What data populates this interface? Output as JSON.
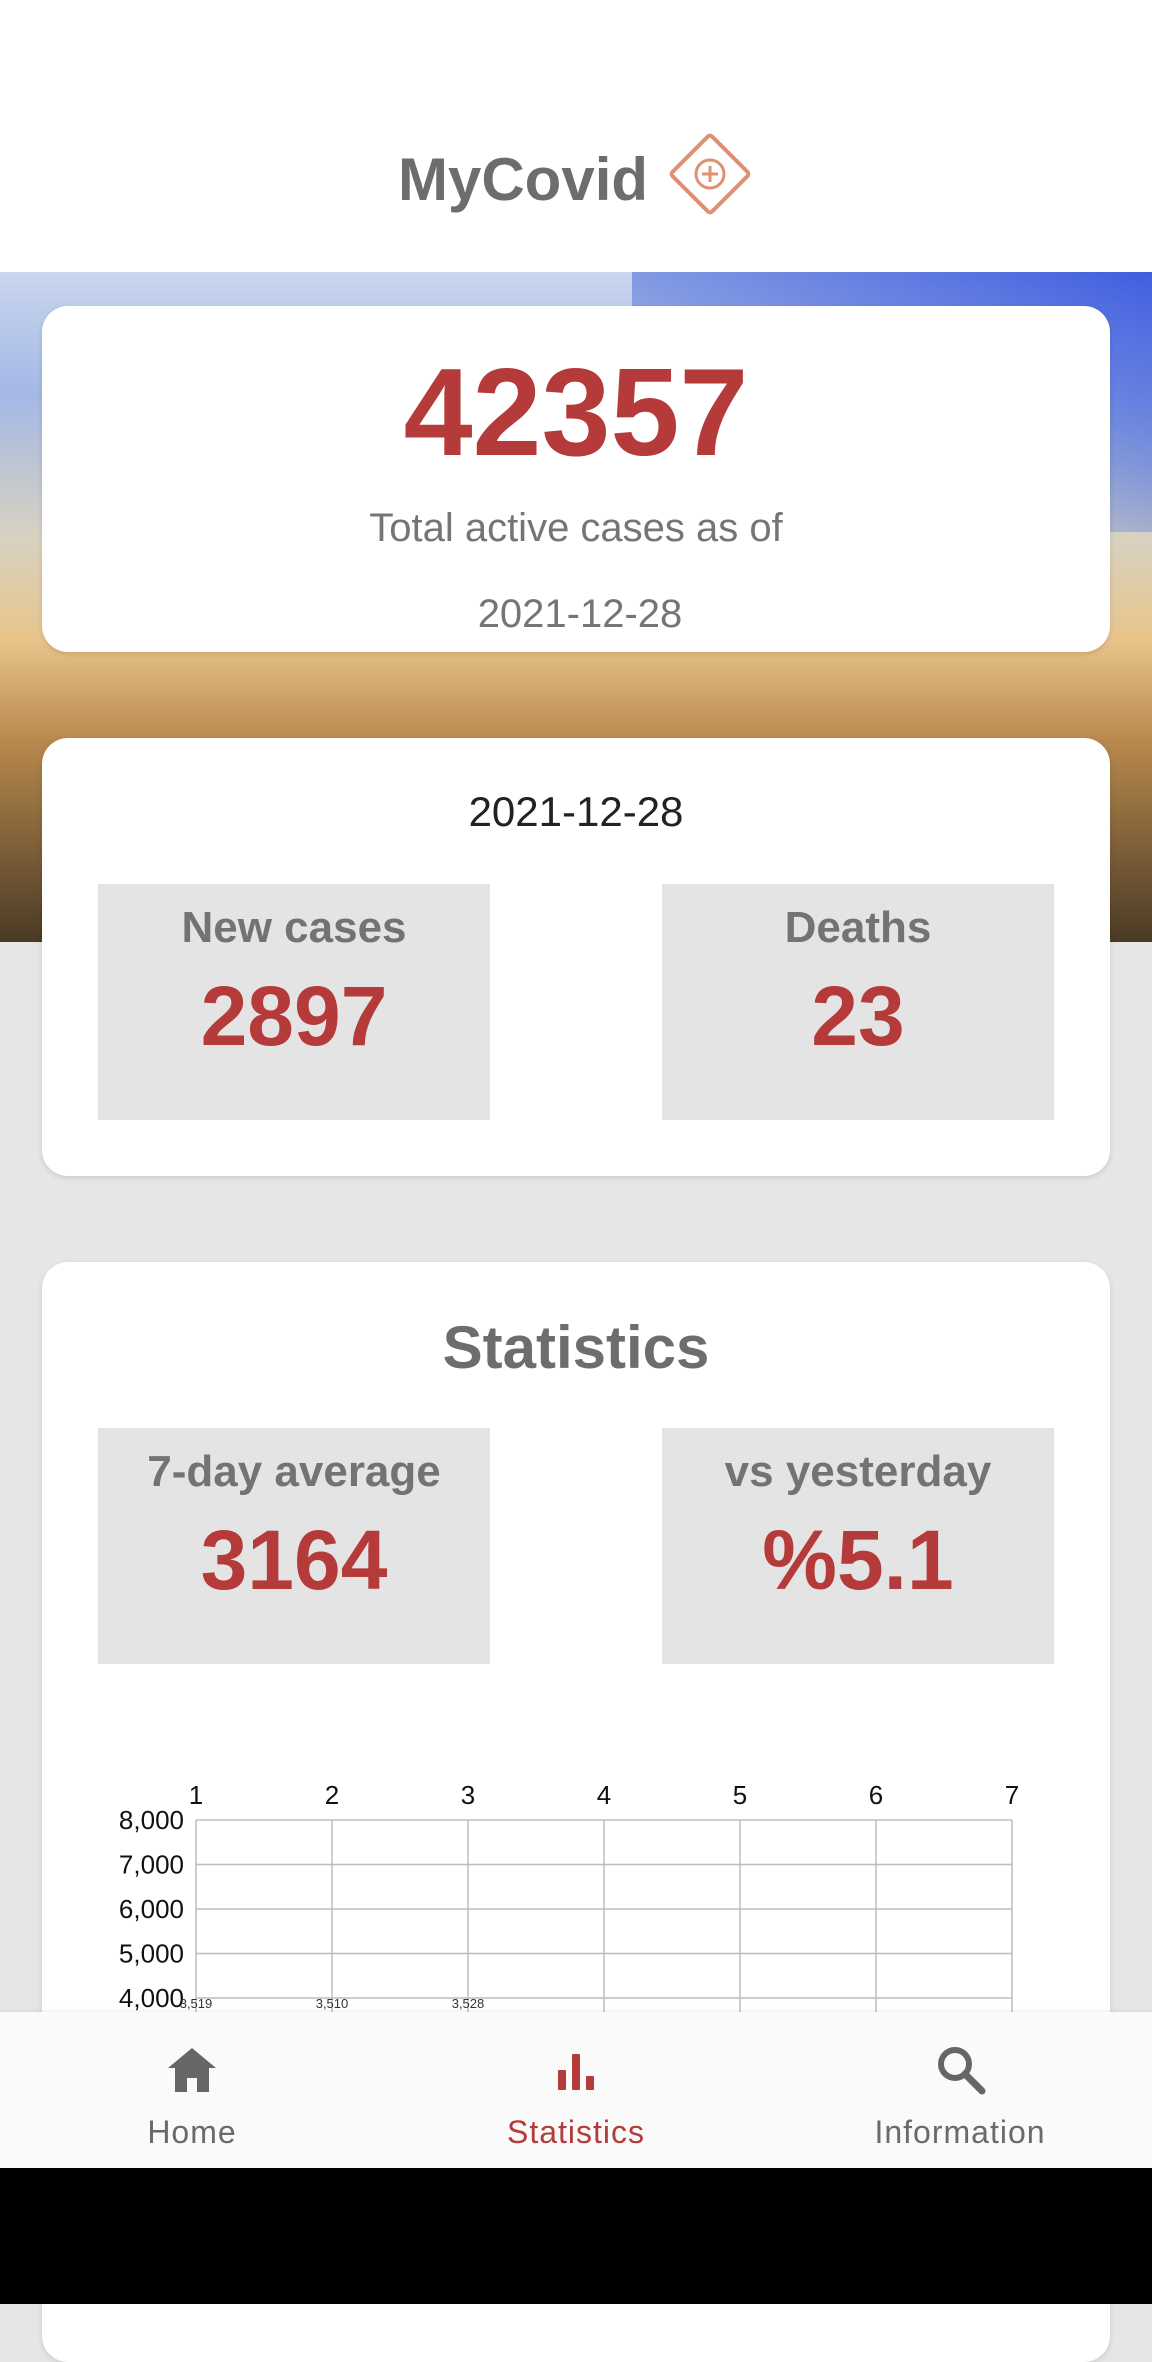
{
  "header": {
    "title": "MyCovid",
    "logo_icon": "plus-diamond-icon"
  },
  "total": {
    "value": "42357",
    "label": "Total active cases as of",
    "date": "2021-12-28"
  },
  "daily": {
    "date": "2021-12-28",
    "new_cases": {
      "label": "New cases",
      "value": "2897"
    },
    "deaths": {
      "label": "Deaths",
      "value": "23"
    }
  },
  "statistics": {
    "title": "Statistics",
    "avg": {
      "label": "7-day average",
      "value": "3164"
    },
    "vs_yesterday": {
      "label": "vs yesterday",
      "value": "%5.1"
    }
  },
  "chart_data": {
    "type": "line",
    "x_tick_labels": [
      "1",
      "2",
      "3",
      "4",
      "5",
      "6",
      "7"
    ],
    "y_tick_labels": [
      "8,000",
      "7,000",
      "6,000",
      "5,000",
      "4,000"
    ],
    "ylim_visible": [
      4000,
      8000
    ],
    "grid": true,
    "point_labels": [
      {
        "x": 1,
        "label": "3,519",
        "y": 3519
      },
      {
        "x": 2,
        "label": "3,510",
        "y": 3510
      },
      {
        "x": 3,
        "label": "3,528",
        "y": 3528
      }
    ]
  },
  "nav": {
    "items": [
      {
        "label": "Home",
        "icon": "home-icon",
        "active": false
      },
      {
        "label": "Statistics",
        "icon": "bar-chart-icon",
        "active": true
      },
      {
        "label": "Information",
        "icon": "search-icon",
        "active": false
      }
    ]
  },
  "colors": {
    "accent": "#b53a3a",
    "muted_text": "#6d6d6d",
    "box_bg": "#e4e4e4"
  }
}
